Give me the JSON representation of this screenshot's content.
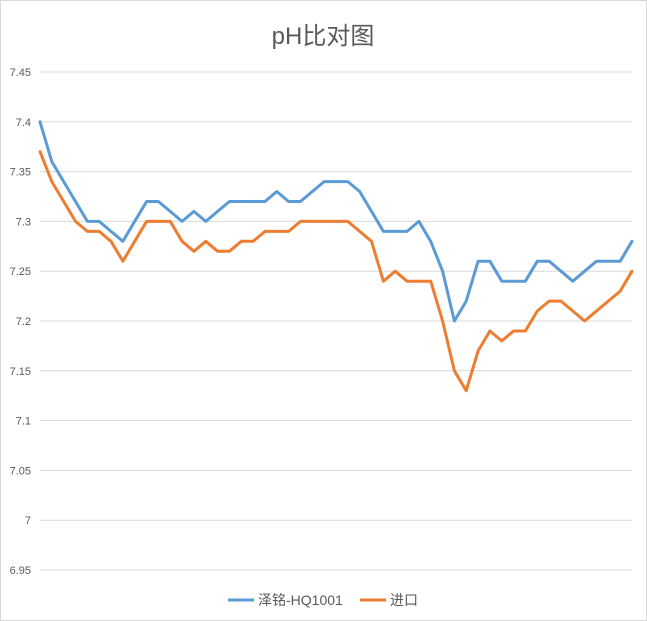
{
  "chart_data": {
    "type": "line",
    "title": "pH比对图",
    "xlabel": "",
    "ylabel": "",
    "ylim": [
      6.95,
      7.45
    ],
    "yticks": [
      "7.45",
      "7.4",
      "7.35",
      "7.3",
      "7.25",
      "7.2",
      "7.15",
      "7.1",
      "7.05",
      "7",
      "6.95"
    ],
    "grid": true,
    "legend_position": "bottom",
    "series": [
      {
        "name": "泽铭-HQ1001",
        "color": "#5b9bd5",
        "values": [
          7.4,
          7.36,
          7.34,
          7.32,
          7.3,
          7.3,
          7.29,
          7.28,
          7.3,
          7.32,
          7.32,
          7.31,
          7.3,
          7.31,
          7.3,
          7.31,
          7.32,
          7.32,
          7.32,
          7.32,
          7.33,
          7.32,
          7.32,
          7.33,
          7.34,
          7.34,
          7.34,
          7.33,
          7.31,
          7.29,
          7.29,
          7.29,
          7.3,
          7.28,
          7.25,
          7.2,
          7.22,
          7.26,
          7.26,
          7.24,
          7.24,
          7.24,
          7.26,
          7.26,
          7.25,
          7.24,
          7.25,
          7.26,
          7.26,
          7.26,
          7.28
        ]
      },
      {
        "name": "进口",
        "color": "#ed7d31",
        "values": [
          7.37,
          7.34,
          7.32,
          7.3,
          7.29,
          7.29,
          7.28,
          7.26,
          7.28,
          7.3,
          7.3,
          7.3,
          7.28,
          7.27,
          7.28,
          7.27,
          7.27,
          7.28,
          7.28,
          7.29,
          7.29,
          7.29,
          7.3,
          7.3,
          7.3,
          7.3,
          7.3,
          7.29,
          7.28,
          7.24,
          7.25,
          7.24,
          7.24,
          7.24,
          7.2,
          7.15,
          7.13,
          7.17,
          7.19,
          7.18,
          7.19,
          7.19,
          7.21,
          7.22,
          7.22,
          7.21,
          7.2,
          7.21,
          7.22,
          7.23,
          7.25
        ]
      }
    ]
  }
}
